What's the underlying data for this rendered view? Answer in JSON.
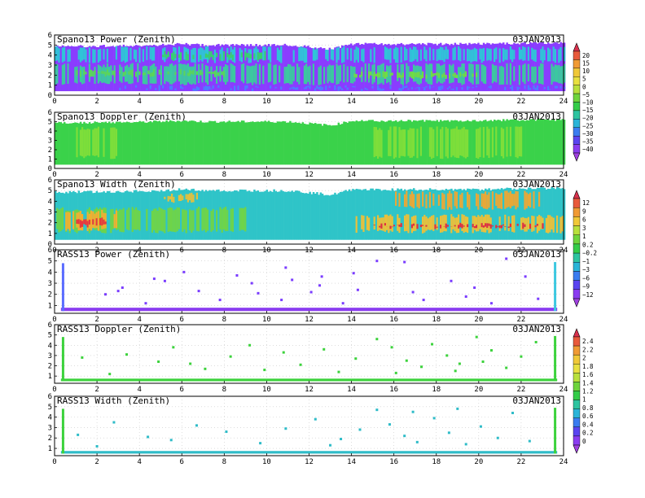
{
  "date": "03JAN2013",
  "chart_data": [
    {
      "type": "heatmap",
      "title": "Spano13 Power (Zenith)",
      "date": "03JAN2013",
      "x_ticks": [
        0,
        2,
        4,
        6,
        8,
        10,
        12,
        14,
        16,
        18,
        20,
        22,
        24
      ],
      "y_ticks": [
        0,
        1,
        2,
        3,
        4,
        5,
        6
      ],
      "xlim": [
        0,
        24
      ],
      "ylim": [
        0,
        6
      ],
      "grid": true,
      "top_boundary": [
        [
          0,
          4.85
        ],
        [
          4,
          4.95
        ],
        [
          6,
          5.1
        ],
        [
          7,
          5.0
        ],
        [
          11,
          5.0
        ],
        [
          12,
          4.8
        ],
        [
          13,
          4.6
        ],
        [
          14,
          5.1
        ],
        [
          16,
          5.1
        ],
        [
          20,
          5.1
        ],
        [
          22,
          5.2
        ],
        [
          24,
          5.2
        ]
      ],
      "bottom": 0.4,
      "bands": [
        {
          "y": [
            0.4,
            1.0
          ],
          "color": "#8a3cff",
          "x": [
            0,
            3
          ]
        },
        {
          "y": [
            0.4,
            1.0
          ],
          "color": "#4e7dff",
          "x": [
            3,
            24
          ]
        },
        {
          "y": [
            1.0,
            3.2
          ],
          "color": "#3cc8a0",
          "x": [
            0,
            24
          ]
        },
        {
          "y": [
            1.8,
            2.6
          ],
          "color": "#5ad65a",
          "x": [
            1,
            8
          ]
        },
        {
          "y": [
            1.6,
            2.4
          ],
          "color": "#6edc46",
          "x": [
            14,
            20
          ]
        },
        {
          "y": [
            3.2,
            4.9
          ],
          "color": "#2fc4d8",
          "x": [
            0,
            24
          ]
        },
        {
          "y": [
            3.4,
            4.4
          ],
          "color": "#38d070",
          "x": [
            5,
            10
          ]
        }
      ]
    },
    {
      "type": "heatmap",
      "title": "Spano13 Doppler (Zenith)",
      "date": "03JAN2013",
      "x_ticks": [
        0,
        2,
        4,
        6,
        8,
        10,
        12,
        14,
        16,
        18,
        20,
        22,
        24
      ],
      "y_ticks": [
        0,
        1,
        2,
        3,
        4,
        5,
        6
      ],
      "xlim": [
        0,
        24
      ],
      "ylim": [
        0,
        6
      ],
      "grid": true,
      "top_boundary": [
        [
          0,
          4.85
        ],
        [
          4,
          4.95
        ],
        [
          6,
          5.1
        ],
        [
          7,
          5.0
        ],
        [
          11,
          5.0
        ],
        [
          12,
          4.8
        ],
        [
          13,
          4.6
        ],
        [
          14,
          5.1
        ],
        [
          16,
          5.1
        ],
        [
          20,
          5.1
        ],
        [
          22,
          5.2
        ],
        [
          24,
          5.2
        ]
      ],
      "bottom": 0.4,
      "bands": [
        {
          "y": [
            0.4,
            5.2
          ],
          "color": "#3ad24a",
          "x": [
            0,
            24
          ]
        },
        {
          "y": [
            1.0,
            4.5
          ],
          "color": "#7ede3a",
          "x": [
            1,
            3
          ]
        },
        {
          "y": [
            1.0,
            4.5
          ],
          "color": "#7ede3a",
          "x": [
            15,
            22
          ]
        }
      ]
    },
    {
      "type": "heatmap",
      "title": "Spano13 Width (Zenith)",
      "date": "03JAN2013",
      "x_ticks": [
        0,
        2,
        4,
        6,
        8,
        10,
        12,
        14,
        16,
        18,
        20,
        22,
        24
      ],
      "y_ticks": [
        0,
        1,
        2,
        3,
        4,
        5,
        6
      ],
      "xlim": [
        0,
        24
      ],
      "ylim": [
        0,
        6
      ],
      "grid": true,
      "top_boundary": [
        [
          0,
          4.85
        ],
        [
          4,
          4.95
        ],
        [
          6,
          5.1
        ],
        [
          7,
          5.0
        ],
        [
          11,
          5.0
        ],
        [
          12,
          4.8
        ],
        [
          13,
          4.6
        ],
        [
          14,
          5.1
        ],
        [
          16,
          5.1
        ],
        [
          20,
          5.1
        ],
        [
          22,
          5.2
        ],
        [
          24,
          5.2
        ]
      ],
      "bottom": 0.4,
      "bands": [
        {
          "y": [
            0.4,
            5.2
          ],
          "color": "#2fc4c8",
          "x": [
            0,
            24
          ]
        },
        {
          "y": [
            1.0,
            3.5
          ],
          "color": "#6ed44a",
          "x": [
            0,
            9
          ]
        },
        {
          "y": [
            1.2,
            3.2
          ],
          "color": "#f0b030",
          "x": [
            0.5,
            3
          ]
        },
        {
          "y": [
            1.5,
            2.5
          ],
          "color": "#e8383c",
          "x": [
            1,
            2.5
          ]
        },
        {
          "y": [
            3.8,
            4.8
          ],
          "color": "#e0c040",
          "x": [
            5,
            7
          ]
        },
        {
          "y": [
            1.0,
            2.8
          ],
          "color": "#e8c03c",
          "x": [
            14,
            24
          ]
        },
        {
          "y": [
            1.4,
            2.0
          ],
          "color": "#e03040",
          "x": [
            15,
            23
          ]
        },
        {
          "y": [
            3.2,
            5.0
          ],
          "color": "#e8a838",
          "x": [
            16,
            23
          ]
        }
      ]
    },
    {
      "type": "heatmap",
      "title": "RASS13 Power (Zenith)",
      "date": "03JAN2013",
      "x_ticks": [
        0,
        2,
        4,
        6,
        8,
        10,
        12,
        14,
        16,
        18,
        20,
        22,
        24
      ],
      "y_ticks": [
        1,
        2,
        3,
        4,
        5,
        6
      ],
      "xlim": [
        0,
        24
      ],
      "ylim": [
        0.3,
        6
      ],
      "grid": true,
      "base_band": {
        "y": [
          0.5,
          0.8
        ],
        "color": "#8a3cf0",
        "x": [
          0.3,
          23.7
        ]
      },
      "spikes": [
        {
          "x": 0.4,
          "y": [
            0.5,
            4.8
          ],
          "color": "#5a6cff"
        },
        {
          "x": 23.6,
          "y": [
            0.5,
            4.9
          ],
          "color": "#3cc8e0"
        }
      ],
      "dots": [
        [
          2.4,
          2.0
        ],
        [
          3.0,
          2.3
        ],
        [
          3.2,
          2.6
        ],
        [
          4.7,
          3.4
        ],
        [
          5.2,
          3.2
        ],
        [
          6.1,
          4.0
        ],
        [
          6.8,
          2.3
        ],
        [
          8.6,
          3.7
        ],
        [
          9.3,
          3.0
        ],
        [
          9.6,
          2.1
        ],
        [
          10.7,
          1.5
        ],
        [
          10.9,
          4.4
        ],
        [
          11.2,
          3.3
        ],
        [
          12.5,
          2.8
        ],
        [
          12.6,
          3.6
        ],
        [
          14.1,
          3.9
        ],
        [
          14.3,
          2.4
        ],
        [
          15.2,
          5.0
        ],
        [
          16.5,
          4.9
        ],
        [
          16.9,
          2.2
        ],
        [
          17.4,
          1.5
        ],
        [
          18.7,
          3.2
        ],
        [
          19.4,
          1.8
        ],
        [
          19.8,
          2.6
        ],
        [
          20.6,
          1.2
        ],
        [
          21.3,
          5.2
        ],
        [
          22.2,
          3.6
        ],
        [
          22.8,
          1.6
        ],
        [
          13.6,
          1.2
        ],
        [
          12.1,
          2.2
        ],
        [
          4.3,
          1.2
        ],
        [
          7.8,
          1.5
        ]
      ],
      "dot_color": "#7a3cff"
    },
    {
      "type": "heatmap",
      "title": "RASS13 Doppler (Zenith)",
      "date": "03JAN2013",
      "x_ticks": [
        0,
        2,
        4,
        6,
        8,
        10,
        12,
        14,
        16,
        18,
        20,
        22,
        24
      ],
      "y_ticks": [
        1,
        2,
        3,
        4,
        5,
        6
      ],
      "xlim": [
        0,
        24
      ],
      "ylim": [
        0.3,
        6
      ],
      "grid": true,
      "base_band": {
        "y": [
          0.5,
          0.75
        ],
        "color": "#3cd23c",
        "x": [
          0.3,
          23.7
        ]
      },
      "spikes": [
        {
          "x": 0.4,
          "y": [
            0.5,
            4.8
          ],
          "color": "#3cd23c"
        },
        {
          "x": 23.6,
          "y": [
            0.5,
            4.9
          ],
          "color": "#3cd23c"
        }
      ],
      "dots": [
        [
          1.3,
          2.8
        ],
        [
          2.6,
          1.2
        ],
        [
          3.4,
          3.1
        ],
        [
          4.9,
          2.4
        ],
        [
          5.6,
          3.8
        ],
        [
          6.4,
          2.2
        ],
        [
          7.1,
          1.7
        ],
        [
          8.3,
          2.9
        ],
        [
          9.2,
          4.0
        ],
        [
          9.9,
          1.6
        ],
        [
          10.8,
          3.3
        ],
        [
          11.6,
          2.1
        ],
        [
          12.7,
          3.6
        ],
        [
          13.4,
          1.4
        ],
        [
          14.2,
          2.7
        ],
        [
          15.2,
          4.6
        ],
        [
          15.9,
          3.8
        ],
        [
          16.6,
          2.5
        ],
        [
          17.3,
          1.9
        ],
        [
          17.8,
          4.1
        ],
        [
          18.5,
          3.0
        ],
        [
          19.1,
          2.2
        ],
        [
          19.9,
          4.8
        ],
        [
          20.6,
          3.5
        ],
        [
          21.3,
          1.8
        ],
        [
          22.0,
          2.9
        ],
        [
          22.7,
          4.3
        ],
        [
          16.1,
          1.3
        ],
        [
          18.9,
          1.5
        ],
        [
          20.2,
          2.4
        ]
      ],
      "dot_color": "#3cd23c"
    },
    {
      "type": "heatmap",
      "title": "RASS13 Width (Zenith)",
      "date": "03JAN2013",
      "x_ticks": [
        0,
        2,
        4,
        6,
        8,
        10,
        12,
        14,
        16,
        18,
        20,
        22,
        24
      ],
      "y_ticks": [
        1,
        2,
        3,
        4,
        5,
        6
      ],
      "xlim": [
        0,
        24
      ],
      "ylim": [
        0.3,
        6
      ],
      "grid": true,
      "base_band": {
        "y": [
          0.5,
          0.75
        ],
        "color": "#2fbcc8",
        "x": [
          0.3,
          23.7
        ]
      },
      "spikes": [
        {
          "x": 0.4,
          "y": [
            0.5,
            4.8
          ],
          "color": "#3cd23c"
        },
        {
          "x": 23.6,
          "y": [
            0.5,
            4.9
          ],
          "color": "#3cd23c"
        }
      ],
      "dots": [
        [
          1.1,
          2.3
        ],
        [
          2.0,
          1.2
        ],
        [
          2.8,
          3.5
        ],
        [
          4.4,
          2.1
        ],
        [
          5.5,
          1.8
        ],
        [
          6.7,
          3.2
        ],
        [
          8.1,
          2.6
        ],
        [
          9.7,
          1.5
        ],
        [
          10.9,
          2.9
        ],
        [
          12.3,
          3.8
        ],
        [
          13.5,
          1.9
        ],
        [
          14.4,
          2.8
        ],
        [
          15.2,
          4.7
        ],
        [
          15.8,
          3.3
        ],
        [
          16.5,
          2.2
        ],
        [
          17.1,
          1.6
        ],
        [
          17.9,
          3.9
        ],
        [
          18.6,
          2.5
        ],
        [
          19.4,
          1.4
        ],
        [
          20.1,
          3.1
        ],
        [
          20.9,
          2.0
        ],
        [
          21.6,
          4.4
        ],
        [
          22.4,
          1.7
        ],
        [
          16.9,
          4.5
        ],
        [
          19.0,
          4.8
        ],
        [
          13.0,
          1.3
        ]
      ],
      "dot_color": "#2fbcc8"
    }
  ],
  "colorbars": [
    {
      "labels": [
        "20",
        "15",
        "10",
        "5",
        "0",
        "−5",
        "−10",
        "−15",
        "−20",
        "−25",
        "−30",
        "−35",
        "−40"
      ],
      "colors": [
        "#d8304c",
        "#e85a3c",
        "#f09a34",
        "#f0c838",
        "#e8e040",
        "#b8e03c",
        "#6ed43c",
        "#34cc48",
        "#2ec4a0",
        "#2ab4d8",
        "#3a7cf0",
        "#5a44f0",
        "#8a3cf0",
        "#a040e0"
      ]
    },
    {
      "labels": [
        "12",
        "9",
        "6",
        "3",
        "1",
        "0.2",
        "−0.2",
        "−1",
        "−3",
        "−6",
        "−9",
        "−12"
      ],
      "colors": [
        "#d8304c",
        "#e85a3c",
        "#f09a34",
        "#f0c838",
        "#b8e03c",
        "#6ed43c",
        "#34cc48",
        "#2ec4a0",
        "#2ab4d8",
        "#3a7cf0",
        "#5a44f0",
        "#8a3cf0",
        "#a040e0"
      ]
    },
    {
      "labels": [
        "2.4",
        "2.2",
        "2",
        "1.8",
        "1.6",
        "1.4",
        "1.2",
        "1",
        "0.8",
        "0.6",
        "0.4",
        "0.2",
        "0"
      ],
      "colors": [
        "#d8304c",
        "#e85a3c",
        "#f09a34",
        "#f0c838",
        "#e8e040",
        "#b8e03c",
        "#6ed43c",
        "#34cc48",
        "#2ec4a0",
        "#2ab4d8",
        "#3a7cf0",
        "#5a44f0",
        "#8a3cf0",
        "#a040e0"
      ]
    }
  ]
}
